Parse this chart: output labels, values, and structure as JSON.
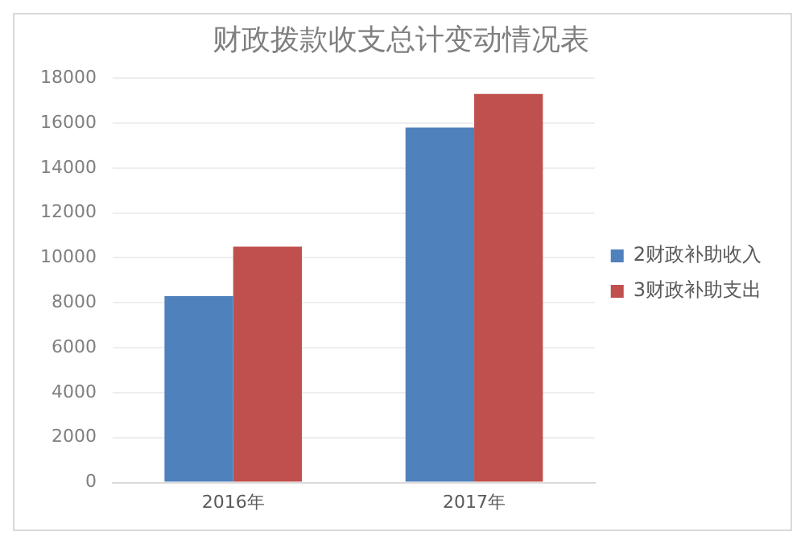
{
  "chart_data": {
    "type": "bar",
    "title": "财政拨款收支总计变动情况表",
    "categories": [
      "2016年",
      "2017年"
    ],
    "series": [
      {
        "name": "2财政补助收入",
        "color": "#4f81bd",
        "values": [
          8300,
          15800
        ]
      },
      {
        "name": "3财政补助支出",
        "color": "#c0504d",
        "values": [
          10500,
          17300
        ]
      }
    ],
    "ylim": [
      0,
      18000
    ],
    "yticks": [
      0,
      2000,
      4000,
      6000,
      8000,
      10000,
      12000,
      14000,
      16000,
      18000
    ],
    "grid": "y",
    "legend": "right"
  }
}
